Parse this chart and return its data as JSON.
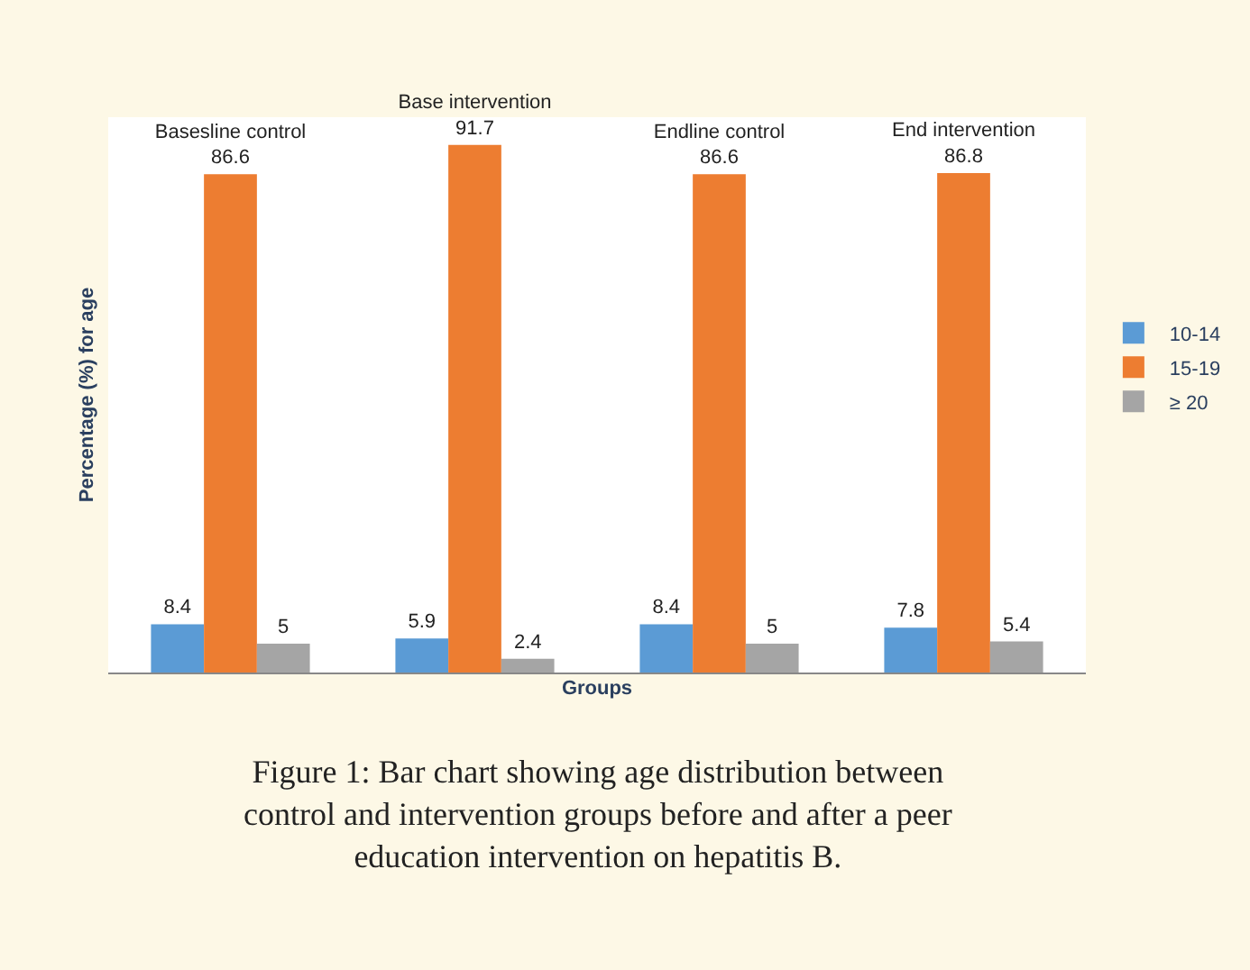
{
  "chart_data": {
    "type": "bar",
    "categories": [
      "Basesline control",
      "Base intervention",
      "Endline control",
      "End intervention"
    ],
    "series": [
      {
        "name": "10-14",
        "color": "#5b9bd5",
        "values": [
          8.4,
          5.9,
          8.4,
          7.8
        ]
      },
      {
        "name": "15-19",
        "color": "#ed7d31",
        "values": [
          86.6,
          91.7,
          86.6,
          86.8
        ]
      },
      {
        "name": "≥ 20",
        "color": "#a5a5a5",
        "values": [
          5,
          2.4,
          5,
          5.4
        ]
      }
    ],
    "data_labels": true,
    "xlabel": "Groups",
    "ylabel": "Percentage (%) for age",
    "legend": "right",
    "tick_labels": false,
    "annotations": [
      "Figure 1: Bar chart showing age distribution between control and intervention groups before and after a peer education intervention on hepatitis B."
    ]
  }
}
